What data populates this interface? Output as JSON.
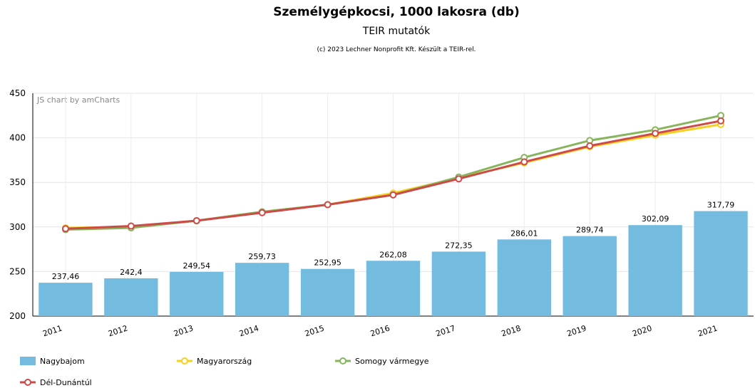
{
  "chart_data": {
    "type": "bar_line",
    "title": "Személygépkocsi, 1000 lakosra (db)",
    "subtitle": "TEIR mutatók",
    "credit": "(c) 2023 Lechner Nonprofit Kft. Készült a TEIR-rel.",
    "watermark": "JS chart by amCharts",
    "categories": [
      "2011",
      "2012",
      "2013",
      "2014",
      "2015",
      "2016",
      "2017",
      "2018",
      "2019",
      "2020",
      "2021"
    ],
    "series": [
      {
        "name": "Nagybajom",
        "type": "bar",
        "color": "#74bbe0",
        "values": [
          237.46,
          242.4,
          249.54,
          259.73,
          252.95,
          262.08,
          272.35,
          286.01,
          289.74,
          302.09,
          317.79
        ],
        "value_labels": [
          "237,46",
          "242,4",
          "249,54",
          "259,73",
          "252,95",
          "262,08",
          "272,35",
          "286,01",
          "289,74",
          "302,09",
          "317,79"
        ]
      },
      {
        "name": "Magyarország",
        "type": "line",
        "color": "#f7cf1c",
        "values": [
          299,
          300,
          307,
          317,
          325,
          338,
          355,
          372,
          390,
          403,
          415
        ]
      },
      {
        "name": "Somogy vármegye",
        "type": "line",
        "color": "#86b55c",
        "values": [
          297,
          299,
          307,
          317,
          325,
          336,
          356,
          378,
          397,
          409,
          425
        ]
      },
      {
        "name": "Dél-Dunántúl",
        "type": "line",
        "color": "#cc4b48",
        "values": [
          298,
          301,
          307,
          316,
          325,
          336,
          354,
          373,
          391,
          405,
          419
        ]
      }
    ],
    "ylim": [
      200,
      450
    ],
    "yticks": [
      200,
      250,
      300,
      350,
      400,
      450
    ],
    "grid": true
  }
}
